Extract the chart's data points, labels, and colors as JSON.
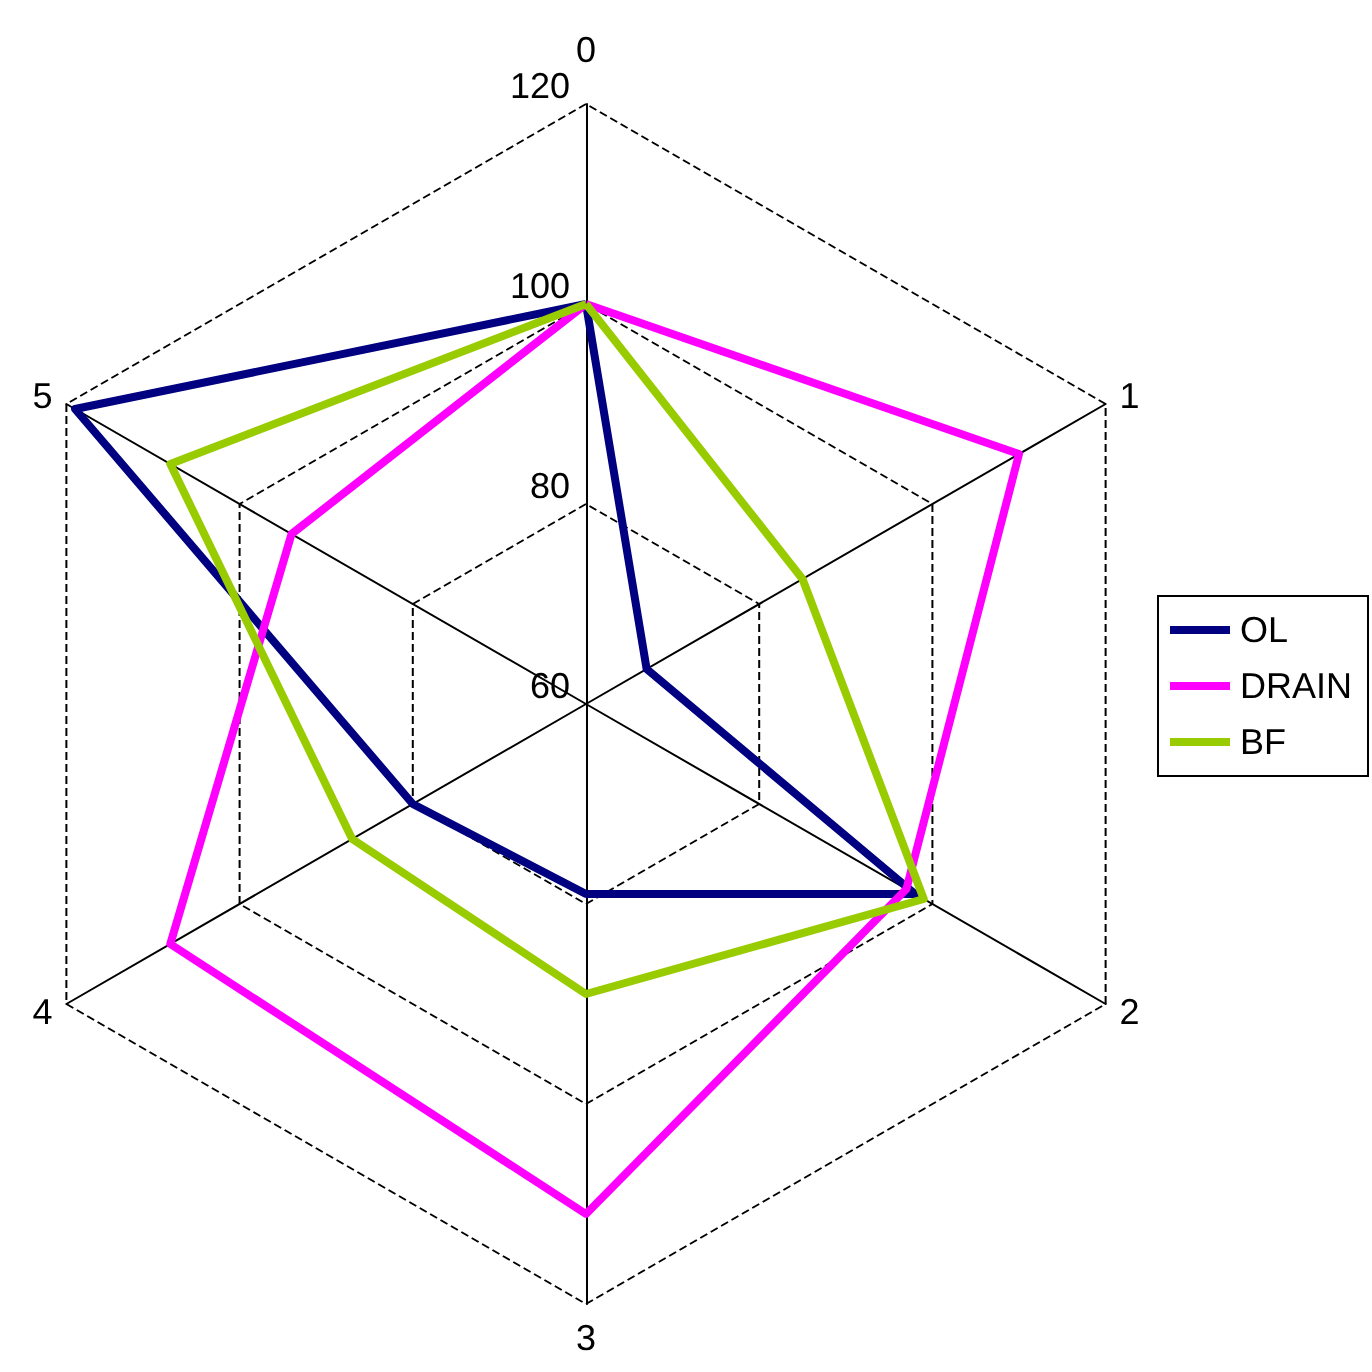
{
  "chart_data": {
    "type": "radar",
    "categories": [
      "0",
      "1",
      "2",
      "3",
      "4",
      "5"
    ],
    "ylim": [
      60,
      120
    ],
    "yticks": [
      60,
      80,
      100,
      120
    ],
    "grid": true,
    "legend": "right",
    "series": [
      {
        "name": "OL",
        "color": "#000080",
        "values": [
          100,
          67,
          98,
          79,
          80,
          119
        ]
      },
      {
        "name": "DRAIN",
        "color": "#ff00ff",
        "values": [
          100,
          110,
          97,
          111,
          108,
          94
        ]
      },
      {
        "name": "BF",
        "color": "#99cc00",
        "values": [
          100,
          85,
          99,
          89,
          87,
          108
        ]
      }
    ]
  }
}
